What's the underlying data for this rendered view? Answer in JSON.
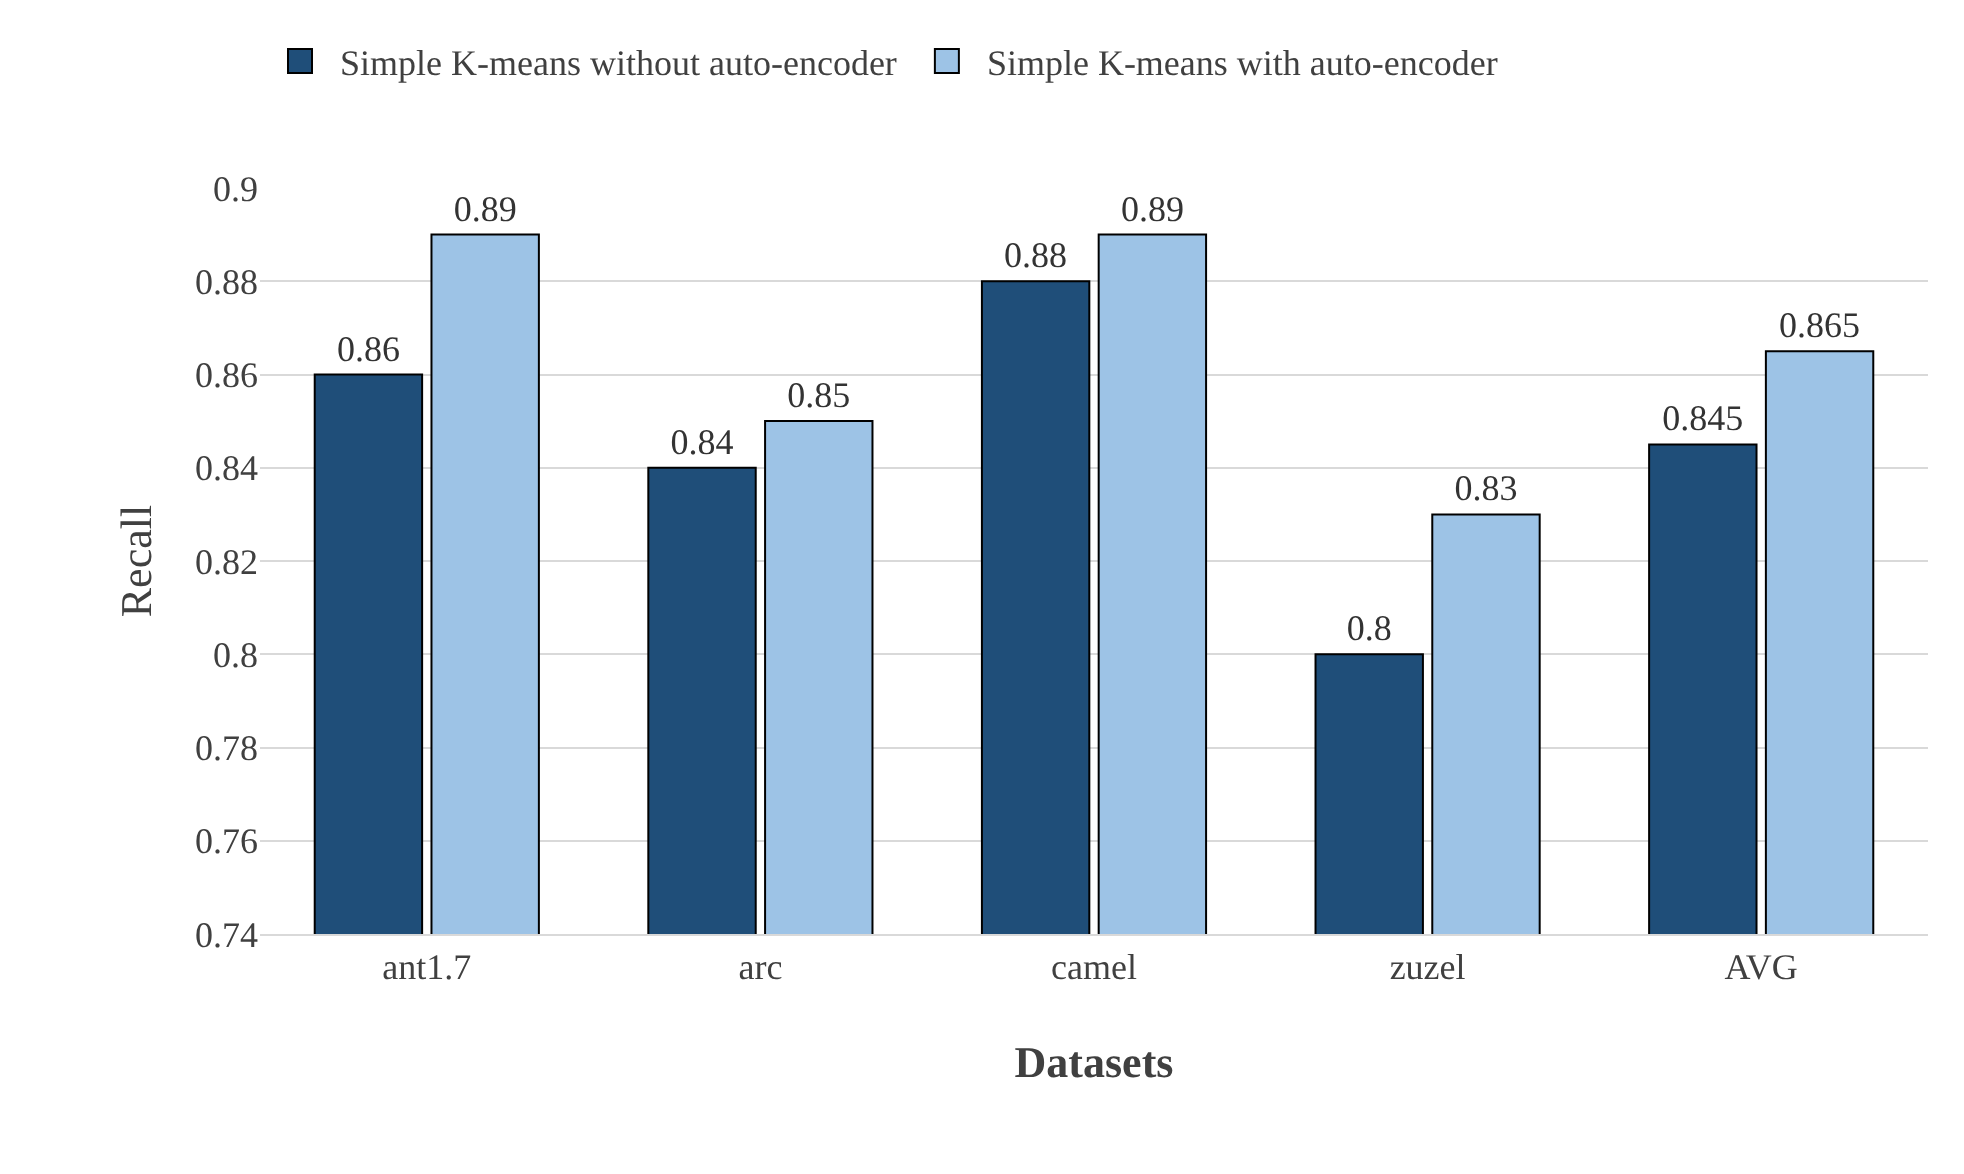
{
  "chart_data": {
    "type": "bar",
    "xlabel": "Datasets",
    "ylabel": "Recall",
    "categories": [
      "ant1.7",
      "arc",
      "camel",
      "zuzel",
      "AVG"
    ],
    "series": [
      {
        "name": "Simple K-means without auto-encoder",
        "color": "#1f4e79",
        "values": [
          0.86,
          0.84,
          0.88,
          0.8,
          0.845
        ]
      },
      {
        "name": "Simple K-means with auto-encoder",
        "color": "#9dc3e6",
        "values": [
          0.89,
          0.85,
          0.89,
          0.83,
          0.865
        ]
      }
    ],
    "ylim": [
      0.74,
      0.9
    ],
    "yticks": [
      0.74,
      0.76,
      0.78,
      0.8,
      0.82,
      0.84,
      0.86,
      0.88,
      0.9
    ],
    "grid": "y",
    "legend": "top left",
    "data_labels": true
  }
}
